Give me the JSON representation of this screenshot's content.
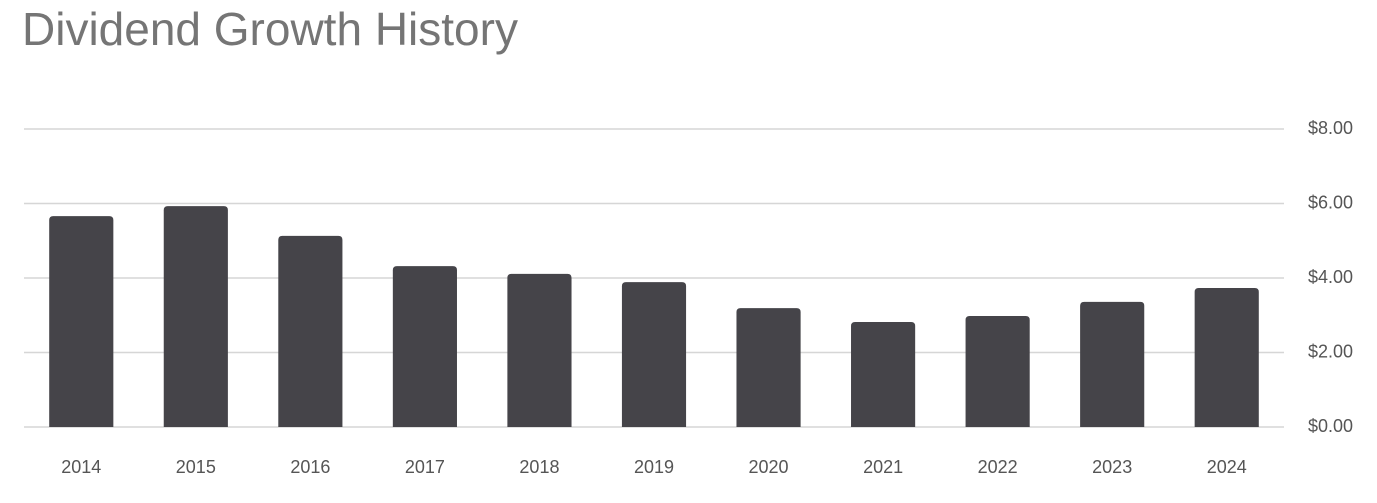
{
  "chart_data": {
    "type": "bar",
    "title": "Dividend Growth History",
    "categories": [
      "2014",
      "2015",
      "2016",
      "2017",
      "2018",
      "2019",
      "2020",
      "2021",
      "2022",
      "2023",
      "2024"
    ],
    "values": [
      5.66,
      5.93,
      5.13,
      4.32,
      4.11,
      3.89,
      3.19,
      2.82,
      2.98,
      3.36,
      3.73
    ],
    "color": "#454449",
    "ylim": [
      0,
      8
    ],
    "yticks": [
      {
        "value": 0,
        "label": "$0.00"
      },
      {
        "value": 2,
        "label": "$2.00"
      },
      {
        "value": 4,
        "label": "$4.00"
      },
      {
        "value": 6,
        "label": "$6.00"
      },
      {
        "value": 8,
        "label": "$8.00"
      }
    ],
    "grid": true
  }
}
